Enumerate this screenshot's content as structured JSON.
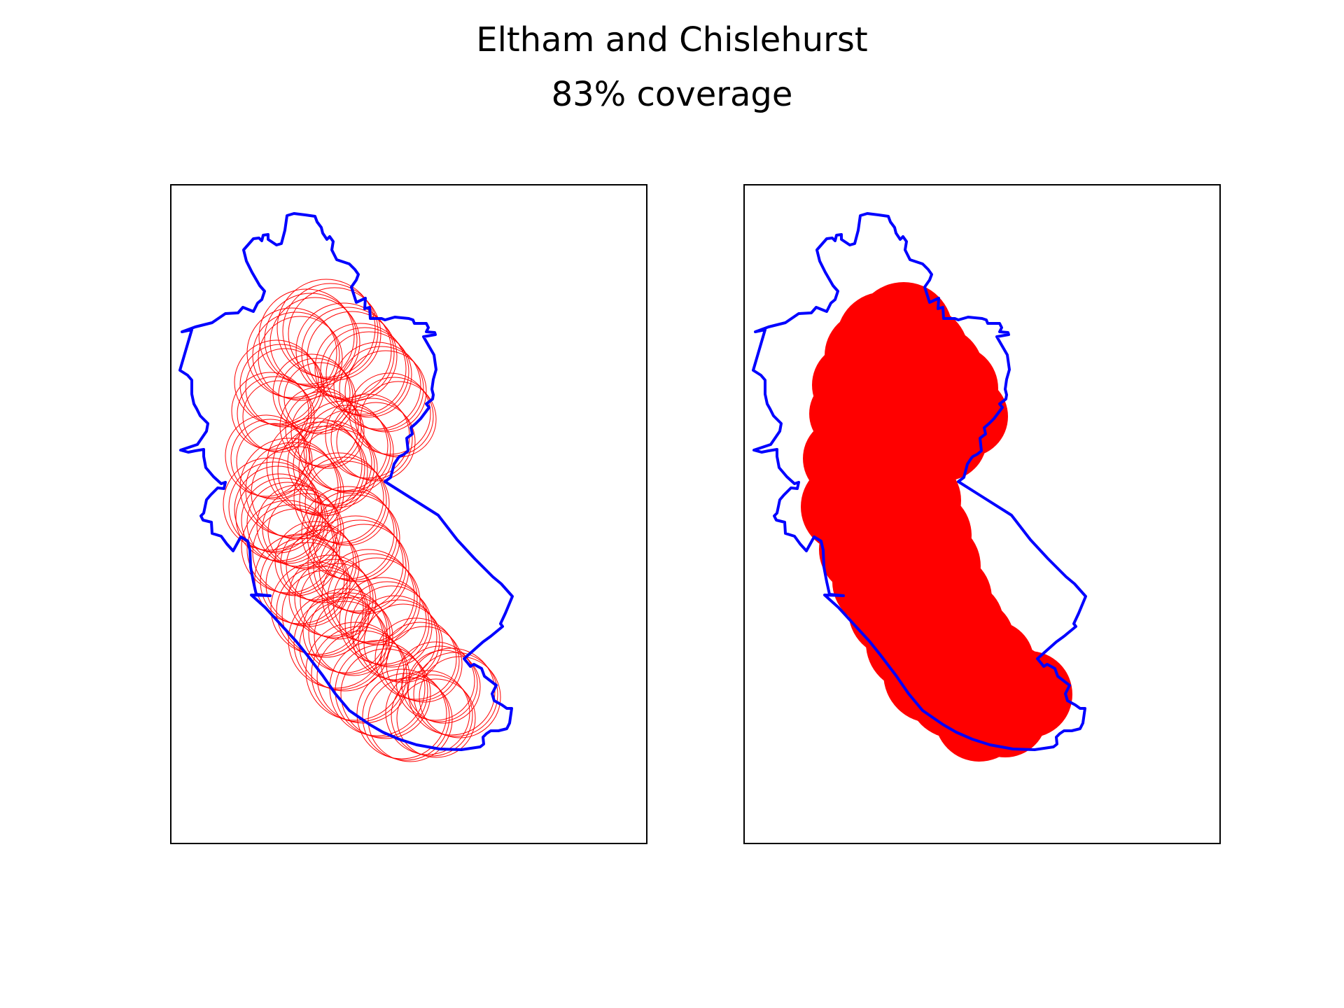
{
  "figure": {
    "title": "Eltham and Chislehurst",
    "subtitle": "83% coverage"
  },
  "map": {
    "boundary_color": "#0000ff",
    "coverage_color": "#ff0000",
    "panels": [
      {
        "name": "circle-outlines",
        "style": "outline"
      },
      {
        "name": "filled-coverage",
        "style": "filled"
      }
    ]
  }
}
